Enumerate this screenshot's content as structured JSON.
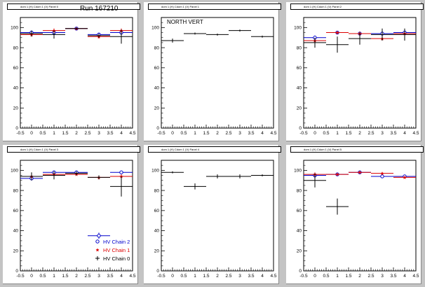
{
  "run_label": "Run 167210",
  "legend": [
    {
      "label": "HV Chain 2",
      "color": "#0000cc",
      "marker": "circle"
    },
    {
      "label": "HV Chain 1",
      "color": "#dd0000",
      "marker": "star"
    },
    {
      "label": "HV Chain 0",
      "color": "#000000",
      "marker": "cross"
    }
  ],
  "chart_data": [
    {
      "type": "scatter",
      "title": "dom 1 (H) Cdom 1 (V) Panel 0",
      "xlim": [
        -0.5,
        4.5
      ],
      "ylim": [
        0,
        110
      ],
      "xticks": [
        "-0.5",
        "0",
        "0.5",
        "1",
        "1.5",
        "2",
        "2.5",
        "3",
        "3.5",
        "4",
        "4.5"
      ],
      "yticks": [
        "0",
        "20",
        "40",
        "60",
        "80",
        "100"
      ],
      "annotation": "",
      "series": [
        {
          "name": "HV Chain 2",
          "color": "#0000cc",
          "x": [
            0,
            1,
            2,
            3,
            4
          ],
          "y": [
            95,
            95,
            99,
            93,
            95
          ],
          "yerr": [
            2,
            2,
            1,
            2,
            2
          ]
        },
        {
          "name": "HV Chain 1",
          "color": "#dd0000",
          "x": [
            0,
            1,
            2,
            3,
            4
          ],
          "y": [
            93,
            97,
            99,
            91,
            97
          ],
          "yerr": [
            2,
            2,
            1,
            2,
            2
          ]
        },
        {
          "name": "HV Chain 0",
          "color": "#000000",
          "x": [
            0,
            1,
            2,
            3,
            4
          ],
          "y": [
            94,
            93,
            99,
            92,
            91
          ],
          "yerr": [
            3,
            4,
            1,
            2,
            7
          ]
        }
      ]
    },
    {
      "type": "scatter",
      "title": "dom 1 (H) Cdom 1 (V) Panel 1",
      "xlim": [
        -0.5,
        4.5
      ],
      "ylim": [
        0,
        110
      ],
      "xticks": [
        "-0.5",
        "0",
        "0.5",
        "1",
        "1.5",
        "2",
        "2.5",
        "3",
        "3.5",
        "4",
        "4.5"
      ],
      "yticks": [
        "0",
        "20",
        "40",
        "60",
        "80",
        "100"
      ],
      "annotation": "NORTH VERT",
      "series": [
        {
          "name": "HV Chain 0",
          "color": "#000000",
          "x": [
            0,
            1,
            2,
            3,
            4
          ],
          "y": [
            87,
            94,
            93,
            97,
            91
          ],
          "yerr": [
            2,
            1,
            1,
            1,
            1
          ]
        }
      ]
    },
    {
      "type": "scatter",
      "title": "dom 1 (H) Cdom 1 (V) Panel 2",
      "xlim": [
        -0.5,
        4.5
      ],
      "ylim": [
        0,
        110
      ],
      "xticks": [
        "-0.5",
        "0",
        "0.5",
        "1",
        "1.5",
        "2",
        "2.5",
        "3",
        "3.5",
        "4",
        "4.5"
      ],
      "yticks": [
        "0",
        "20",
        "40",
        "60",
        "80",
        "100"
      ],
      "annotation": "",
      "series": [
        {
          "name": "HV Chain 2",
          "color": "#0000cc",
          "x": [
            0,
            1,
            2,
            3,
            4
          ],
          "y": [
            90,
            95,
            94,
            94,
            95
          ],
          "yerr": [
            2,
            1,
            2,
            2,
            2
          ]
        },
        {
          "name": "HV Chain 1",
          "color": "#dd0000",
          "x": [
            0,
            1,
            2,
            3,
            4
          ],
          "y": [
            87,
            95,
            94,
            89,
            94
          ],
          "yerr": [
            2,
            1,
            2,
            2,
            2
          ]
        },
        {
          "name": "HV Chain 0",
          "color": "#000000",
          "x": [
            0,
            1,
            2,
            3,
            4
          ],
          "y": [
            85,
            83,
            89,
            93,
            93
          ],
          "yerr": [
            5,
            8,
            6,
            6,
            6
          ]
        }
      ]
    },
    {
      "type": "scatter",
      "title": "dom 1 (H) Cdom 1 (V) Panel 3",
      "xlim": [
        -0.5,
        4.5
      ],
      "ylim": [
        0,
        110
      ],
      "xticks": [
        "-0.5",
        "0",
        "0.5",
        "1",
        "1.5",
        "2",
        "2.5",
        "3",
        "3.5",
        "4",
        "4.5"
      ],
      "yticks": [
        "0",
        "20",
        "40",
        "60",
        "80",
        "100"
      ],
      "annotation": "",
      "series": [
        {
          "name": "HV Chain 2",
          "color": "#0000cc",
          "x": [
            0,
            1,
            2,
            3,
            4
          ],
          "y": [
            92,
            98,
            98,
            35,
            98
          ],
          "yerr": [
            2,
            1,
            1,
            3,
            1
          ]
        },
        {
          "name": "HV Chain 1",
          "color": "#dd0000",
          "x": [
            0,
            1,
            2,
            3,
            4
          ],
          "y": [
            94,
            96,
            96,
            93,
            94
          ],
          "yerr": [
            2,
            1,
            1,
            2,
            2
          ]
        },
        {
          "name": "HV Chain 0",
          "color": "#000000",
          "x": [
            0,
            1,
            2,
            3,
            4
          ],
          "y": [
            94,
            95,
            97,
            93,
            84
          ],
          "yerr": [
            4,
            4,
            2,
            2,
            10
          ]
        }
      ]
    },
    {
      "type": "scatter",
      "title": "dom 1 (H) Cdom 1 (V) Panel 4",
      "xlim": [
        -0.5,
        4.5
      ],
      "ylim": [
        0,
        110
      ],
      "xticks": [
        "-0.5",
        "0",
        "0.5",
        "1",
        "1.5",
        "2",
        "2.5",
        "3",
        "3.5",
        "4",
        "4.5"
      ],
      "yticks": [
        "0",
        "20",
        "40",
        "60",
        "80",
        "100"
      ],
      "annotation": "",
      "series": [
        {
          "name": "HV Chain 0",
          "color": "#000000",
          "x": [
            0,
            1,
            2,
            3,
            4
          ],
          "y": [
            98,
            84,
            94,
            94,
            95
          ],
          "yerr": [
            1,
            3,
            2,
            2,
            1
          ]
        }
      ]
    },
    {
      "type": "scatter",
      "title": "dom 1 (H) Cdom 1 (V) Panel 5",
      "xlim": [
        -0.5,
        4.5
      ],
      "ylim": [
        0,
        110
      ],
      "xticks": [
        "-0.5",
        "0",
        "0.5",
        "1",
        "1.5",
        "2",
        "2.5",
        "3",
        "3.5",
        "4",
        "4.5"
      ],
      "yticks": [
        "0",
        "20",
        "40",
        "60",
        "80",
        "100"
      ],
      "annotation": "",
      "series": [
        {
          "name": "HV Chain 2",
          "color": "#0000cc",
          "x": [
            0,
            1,
            2,
            3,
            4
          ],
          "y": [
            95,
            96,
            98,
            94,
            94
          ],
          "yerr": [
            2,
            1,
            1,
            1,
            1
          ]
        },
        {
          "name": "HV Chain 1",
          "color": "#dd0000",
          "x": [
            0,
            1,
            2,
            3,
            4
          ],
          "y": [
            96,
            96,
            98,
            97,
            93
          ],
          "yerr": [
            2,
            1,
            1,
            1,
            1
          ]
        },
        {
          "name": "HV Chain 0",
          "color": "#000000",
          "x": [
            0,
            1
          ],
          "y": [
            90,
            64
          ],
          "yerr": [
            7,
            8
          ]
        }
      ]
    }
  ]
}
